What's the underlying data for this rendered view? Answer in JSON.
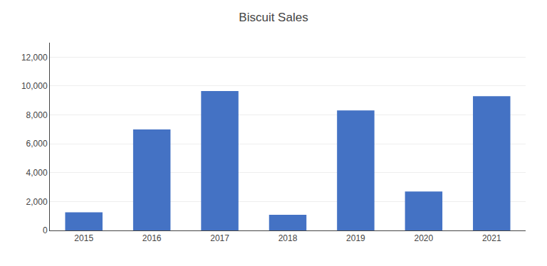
{
  "chart_data": {
    "type": "bar",
    "title": "Biscuit Sales",
    "categories": [
      "2015",
      "2016",
      "2017",
      "2018",
      "2019",
      "2020",
      "2021"
    ],
    "values": [
      1259,
      6988,
      9657,
      1079,
      8315,
      2691,
      9292
    ],
    "color": "#4472C4",
    "ylim": [
      0,
      13000
    ],
    "yticks": [
      0,
      {
        "value": 2000,
        "label": "2,000"
      },
      {
        "value": 4000,
        "label": "4,000"
      },
      {
        "value": 6000,
        "label": "6,000"
      },
      {
        "value": 8000,
        "label": "8,000"
      },
      {
        "value": 10000,
        "label": "10,000"
      },
      {
        "value": 12000,
        "label": "12,000"
      }
    ],
    "grid": true
  }
}
